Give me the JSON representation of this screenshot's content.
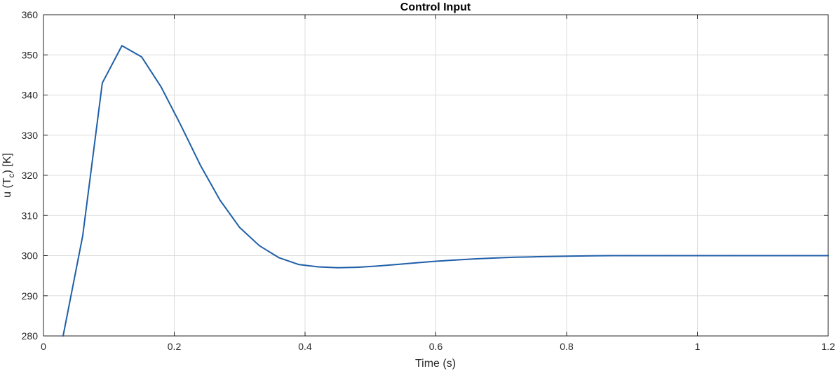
{
  "chart_data": {
    "type": "line",
    "title": "Control Input",
    "xlabel": "Time (s)",
    "ylabel": {
      "prefix": "u (T",
      "subscript": "c",
      "suffix": ") [K]"
    },
    "xlim": [
      0,
      1.2
    ],
    "ylim": [
      280,
      360
    ],
    "xticks": [
      0,
      0.2,
      0.4,
      0.6,
      0.8,
      1,
      1.2
    ],
    "xtick_labels": [
      "0",
      "0.2",
      "0.4",
      "0.6",
      "0.8",
      "1",
      "1.2"
    ],
    "yticks": [
      280,
      290,
      300,
      310,
      320,
      330,
      340,
      350,
      360
    ],
    "ytick_labels": [
      "280",
      "290",
      "300",
      "310",
      "320",
      "330",
      "340",
      "350",
      "360"
    ],
    "grid": true,
    "series": [
      {
        "color": "#1f5fa8",
        "x": [
          0.03,
          0.06,
          0.09,
          0.12,
          0.15,
          0.18,
          0.21,
          0.24,
          0.27,
          0.3,
          0.33,
          0.36,
          0.39,
          0.42,
          0.45,
          0.48,
          0.51,
          0.54,
          0.57,
          0.6,
          0.63,
          0.66,
          0.69,
          0.72,
          0.75,
          0.78,
          0.81,
          0.84,
          0.87,
          0.9,
          0.95,
          1.0,
          1.05,
          1.1,
          1.15,
          1.2
        ],
        "y": [
          280.0,
          305.0,
          343.0,
          352.3,
          349.5,
          342.0,
          332.5,
          322.5,
          313.8,
          307.0,
          302.5,
          299.5,
          297.8,
          297.2,
          297.0,
          297.1,
          297.4,
          297.8,
          298.2,
          298.6,
          298.9,
          299.2,
          299.4,
          299.6,
          299.7,
          299.8,
          299.9,
          299.95,
          300.0,
          300.0,
          300.0,
          300.0,
          300.0,
          300.0,
          300.0,
          300.0
        ]
      }
    ]
  },
  "colors": {
    "grid": "#dcdcdc",
    "axis": "#262626",
    "line": "#1f5fa8"
  }
}
